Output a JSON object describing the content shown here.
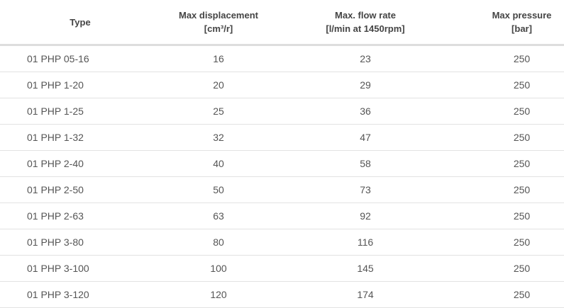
{
  "table": {
    "headers": [
      {
        "line1": "Type",
        "line2": ""
      },
      {
        "line1": "Max displacement",
        "line2": "[cm³/r]"
      },
      {
        "line1": "Max. flow rate",
        "line2": "[l/min at 1450rpm]"
      },
      {
        "line1": "Max pressure",
        "line2": "[bar]"
      }
    ],
    "rows": [
      [
        "01 PHP 05-16",
        "16",
        "23",
        "250"
      ],
      [
        "01 PHP 1-20",
        "20",
        "29",
        "250"
      ],
      [
        "01 PHP 1-25",
        "25",
        "36",
        "250"
      ],
      [
        "01 PHP 1-32",
        "32",
        "47",
        "250"
      ],
      [
        "01 PHP 2-40",
        "40",
        "58",
        "250"
      ],
      [
        "01 PHP 2-50",
        "50",
        "73",
        "250"
      ],
      [
        "01 PHP 2-63",
        "63",
        "92",
        "250"
      ],
      [
        "01 PHP 3-80",
        "80",
        "116",
        "250"
      ],
      [
        "01 PHP 3-100",
        "100",
        "145",
        "250"
      ],
      [
        "01 PHP 3-120",
        "120",
        "174",
        "250"
      ]
    ]
  }
}
